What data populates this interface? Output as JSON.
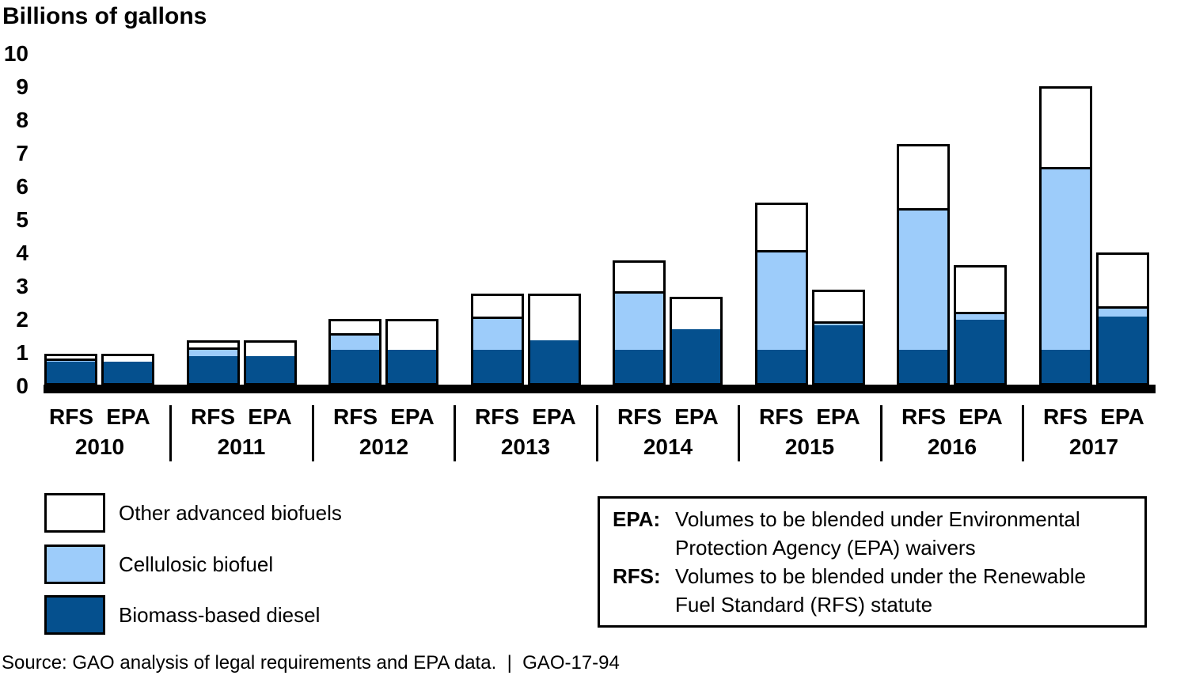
{
  "title": "Billions of gallons",
  "source_line": "Source: GAO analysis of legal requirements and EPA data.  |  GAO-17-94",
  "legend": {
    "items": [
      {
        "label": "Other advanced biofuels",
        "color": "#ffffff"
      },
      {
        "label": "Cellulosic biofuel",
        "color": "#9dccfa"
      },
      {
        "label": "Biomass-based diesel",
        "color": "#05508e"
      }
    ]
  },
  "definitions": {
    "entries": [
      {
        "term": "EPA:",
        "lines": [
          "Volumes to be blended under Environmental",
          "Protection Agency (EPA) waivers"
        ]
      },
      {
        "term": "RFS:",
        "lines": [
          "Volumes to be blended under the Renewable",
          "Fuel Standard (RFS) statute"
        ]
      }
    ]
  },
  "chart_data": {
    "type": "bar",
    "stacked": true,
    "title": "Billions of gallons",
    "ylabel": "Billions of gallons",
    "ylim": [
      0,
      10
    ],
    "yticks": [
      0,
      1,
      2,
      3,
      4,
      5,
      6,
      7,
      8,
      9,
      10
    ],
    "grid": false,
    "bar_pair_labels": [
      "RFS",
      "EPA"
    ],
    "categories": [
      "2010",
      "2011",
      "2012",
      "2013",
      "2014",
      "2015",
      "2016",
      "2017"
    ],
    "series_keys": [
      "biomass_based_diesel",
      "cellulosic_biofuel",
      "other_advanced_biofuels"
    ],
    "series_names": {
      "biomass_based_diesel": "Biomass-based diesel",
      "cellulosic_biofuel": "Cellulosic biofuel",
      "other_advanced_biofuels": "Other advanced biofuels"
    },
    "colors": {
      "biomass_based_diesel": "#05508e",
      "cellulosic_biofuel": "#9dccfa",
      "other_advanced_biofuels": "#ffffff"
    },
    "groups": [
      {
        "year": "2010",
        "rfs": {
          "biomass_based_diesel": 0.65,
          "cellulosic_biofuel": 0.1,
          "other_advanced_biofuels": 0.2,
          "total": 0.95
        },
        "epa": {
          "biomass_based_diesel": 0.65,
          "cellulosic_biofuel": 0.0,
          "other_advanced_biofuels": 0.3,
          "total": 0.95
        }
      },
      {
        "year": "2011",
        "rfs": {
          "biomass_based_diesel": 0.8,
          "cellulosic_biofuel": 0.25,
          "other_advanced_biofuels": 0.3,
          "total": 1.35
        },
        "epa": {
          "biomass_based_diesel": 0.8,
          "cellulosic_biofuel": 0.0,
          "other_advanced_biofuels": 0.55,
          "total": 1.35
        }
      },
      {
        "year": "2012",
        "rfs": {
          "biomass_based_diesel": 1.0,
          "cellulosic_biofuel": 0.5,
          "other_advanced_biofuels": 0.5,
          "total": 2.0
        },
        "epa": {
          "biomass_based_diesel": 1.0,
          "cellulosic_biofuel": 0.0,
          "other_advanced_biofuels": 1.0,
          "total": 2.0
        }
      },
      {
        "year": "2013",
        "rfs": {
          "biomass_based_diesel": 1.0,
          "cellulosic_biofuel": 1.0,
          "other_advanced_biofuels": 0.75,
          "total": 2.75
        },
        "epa": {
          "biomass_based_diesel": 1.28,
          "cellulosic_biofuel": 0.0,
          "other_advanced_biofuels": 1.47,
          "total": 2.75
        }
      },
      {
        "year": "2014",
        "rfs": {
          "biomass_based_diesel": 1.0,
          "cellulosic_biofuel": 1.75,
          "other_advanced_biofuels": 1.0,
          "total": 3.75
        },
        "epa": {
          "biomass_based_diesel": 1.63,
          "cellulosic_biofuel": 0.0,
          "other_advanced_biofuels": 1.04,
          "total": 2.67
        }
      },
      {
        "year": "2015",
        "rfs": {
          "biomass_based_diesel": 1.0,
          "cellulosic_biofuel": 3.0,
          "other_advanced_biofuels": 1.5,
          "total": 5.5
        },
        "epa": {
          "biomass_based_diesel": 1.73,
          "cellulosic_biofuel": 0.12,
          "other_advanced_biofuels": 1.03,
          "total": 2.88
        }
      },
      {
        "year": "2016",
        "rfs": {
          "biomass_based_diesel": 1.0,
          "cellulosic_biofuel": 4.25,
          "other_advanced_biofuels": 2.0,
          "total": 7.25
        },
        "epa": {
          "biomass_based_diesel": 1.9,
          "cellulosic_biofuel": 0.23,
          "other_advanced_biofuels": 1.48,
          "total": 3.61
        }
      },
      {
        "year": "2017",
        "rfs": {
          "biomass_based_diesel": 1.0,
          "cellulosic_biofuel": 5.5,
          "other_advanced_biofuels": 2.5,
          "total": 9.0
        },
        "epa": {
          "biomass_based_diesel": 2.0,
          "cellulosic_biofuel": 0.31,
          "other_advanced_biofuels": 1.69,
          "total": 4.0
        }
      }
    ]
  }
}
